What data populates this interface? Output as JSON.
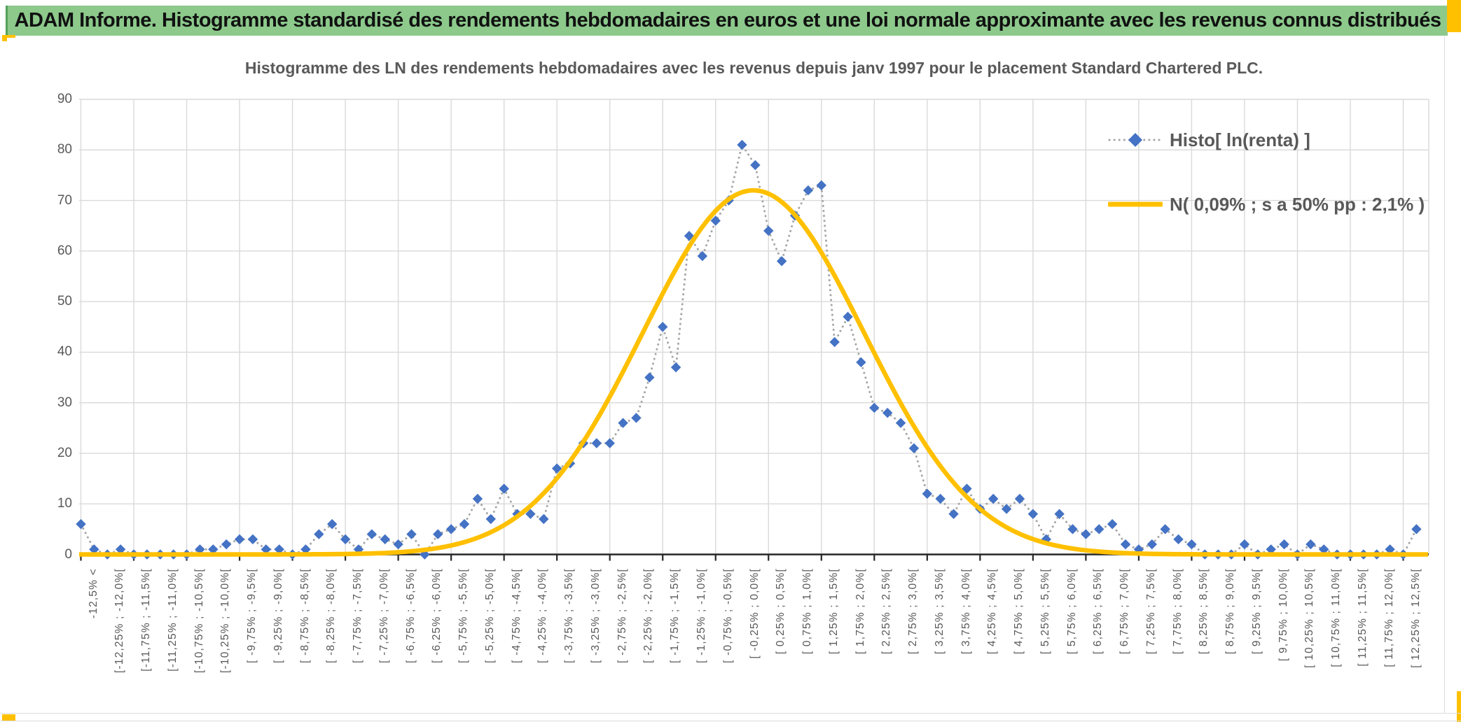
{
  "banner": {
    "text": "ADAM Informe. Histogramme standardisé des rendements hebdomadaires en euros et une loi normale approximante avec les revenus connus distribués"
  },
  "chart_data": {
    "type": "line",
    "title": "Histogramme des LN des rendements hebdomadaires avec les revenus depuis janv 1997 pour le placement Standard Chartered PLC.",
    "xlabel": "",
    "ylabel": "",
    "ylim": [
      0,
      90
    ],
    "grid": true,
    "legend_position": "top-right-inside",
    "ytick_labels": [
      "0",
      "10",
      "20",
      "30",
      "40",
      "50",
      "60",
      "70",
      "80",
      "90"
    ],
    "n_categories": 102,
    "x_bin_width_percent": 0.25,
    "x_range_percent": [
      -12.5,
      12.5
    ],
    "x_label_every_n_categories": 2,
    "x_gridline_every_n_categories": 4,
    "x_tick_labels": [
      "-12,5% <",
      "[-12,25% ; -12,0%[",
      "[-11,75% ; -11,5%[",
      "[-11,25% ; -11,0%[",
      "[-10,75% ; -10,5%[",
      "[-10,25% ; -10,0%[",
      "[ -9,75% ; -9,5%[",
      "[ -9,25% ; -9,0%[",
      "[ -8,75% ; -8,5%[",
      "[ -8,25% ; -8,0%[",
      "[ -7,75% ; -7,5%[",
      "[ -7,25% ; -7,0%[",
      "[ -6,75% ; -6,5%[",
      "[ -6,25% ; -6,0%[",
      "[ -5,75% ; -5,5%[",
      "[ -5,25% ; -5,0%[",
      "[ -4,75% ; -4,5%[",
      "[ -4,25% ; -4,0%[",
      "[ -3,75% ; -3,5%[",
      "[ -3,25% ; -3,0%[",
      "[ -2,75% ; -2,5%[",
      "[ -2,25% ; -2,0%[",
      "[ -1,75% ; -1,5%[",
      "[ -1,25% ; -1,0%[",
      "[ -0,75% ; -0,5%[",
      "[ -0,25% ; 0,0%[",
      "[ 0,25% ; 0,5%[",
      "[ 0,75% ; 1,0%[",
      "[ 1,25% ; 1,5%[",
      "[ 1,75% ; 2,0%[",
      "[ 2,25% ; 2,5%[",
      "[ 2,75% ; 3,0%[",
      "[ 3,25% ; 3,5%[",
      "[ 3,75% ; 4,0%[",
      "[ 4,25% ; 4,5%[",
      "[ 4,75% ; 5,0%[",
      "[ 5,25% ; 5,5%[",
      "[ 5,75% ; 6,0%[",
      "[ 6,25% ; 6,5%[",
      "[ 6,75% ; 7,0%[",
      "[ 7,25% ; 7,5%[",
      "[ 7,75% ; 8,0%[",
      "[ 8,25% ; 8,5%[",
      "[ 8,75% ; 9,0%[",
      "[ 9,25% ; 9,5%[",
      "[ 9,75% ; 10,0%[",
      "[ 10,25% ; 10,5%[",
      "[ 10,75% ; 11,0%[",
      "[ 11,25% ; 11,5%[",
      "[ 11,75% ; 12,0%[",
      "[ 12,25% ; 12,5%["
    ],
    "series": [
      {
        "name": "Histo[ ln(renta) ]",
        "type": "scatter",
        "marker": "diamond",
        "marker_color": "#4472C4",
        "connector": "dotted",
        "connector_color": "#A6A6A6",
        "values": [
          6,
          1,
          0,
          1,
          0,
          0,
          0,
          0,
          0,
          1,
          1,
          2,
          3,
          3,
          1,
          1,
          0,
          1,
          4,
          6,
          3,
          1,
          4,
          3,
          2,
          4,
          0,
          4,
          5,
          6,
          11,
          7,
          13,
          8,
          8,
          7,
          17,
          18,
          22,
          22,
          22,
          26,
          27,
          35,
          45,
          37,
          63,
          59,
          66,
          70,
          81,
          77,
          64,
          58,
          67,
          72,
          73,
          42,
          47,
          38,
          29,
          28,
          26,
          21,
          12,
          11,
          8,
          13,
          9,
          11,
          9,
          11,
          8,
          3,
          8,
          5,
          4,
          5,
          6,
          2,
          1,
          2,
          5,
          3,
          2,
          0,
          0,
          0,
          2,
          0,
          1,
          2,
          0,
          2,
          1,
          0,
          0,
          0,
          0,
          1,
          0,
          5
        ]
      },
      {
        "name": "N( 0,09% ; s a 50% pp : 2,1% )",
        "type": "normal_curve",
        "color": "#FFC000",
        "mean_percent": 0.09,
        "sigma_percent": 2.1,
        "peak_value": 72
      }
    ]
  },
  "colors": {
    "banner_bg": "#8CC98B",
    "accent_gold": "#FFC000",
    "diamond_blue": "#4472C4",
    "curve_gold": "#FFC000",
    "grid": "#D9D9D9",
    "text_gray": "#595959",
    "axis_black": "#262626",
    "dotted_gray": "#A6A6A6"
  }
}
